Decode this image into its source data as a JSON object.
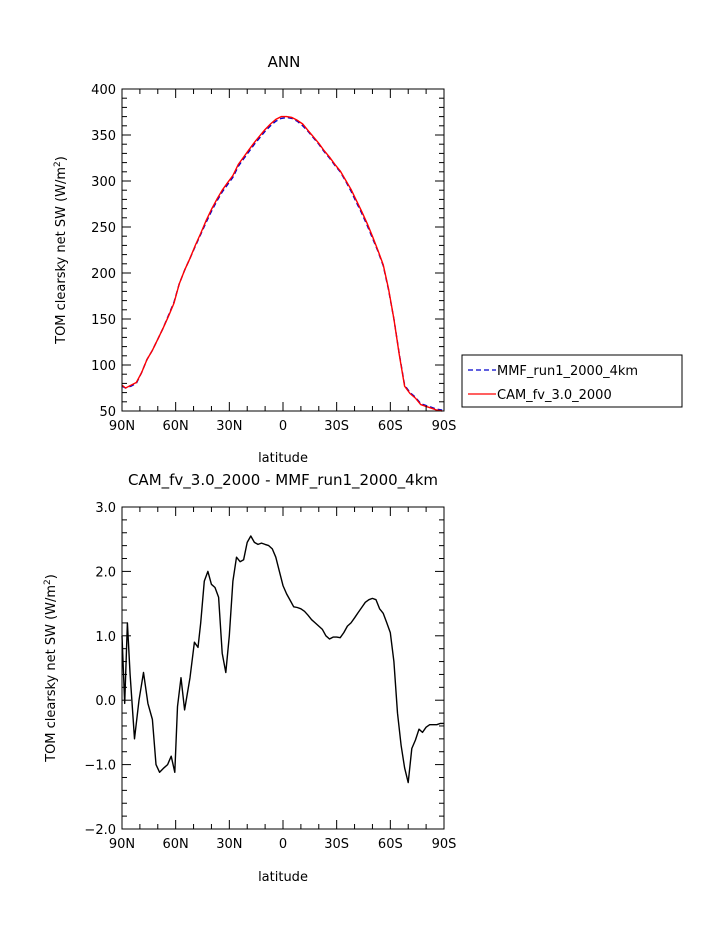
{
  "chart_data": [
    {
      "type": "line",
      "title": "ANN",
      "xlabel": "latitude",
      "ylabel": "TOM clearsky net SW (W/m",
      "ylabel_sup": "2",
      "ylabel_close": ")",
      "xlim": [
        90,
        -90
      ],
      "ylim": [
        50,
        400
      ],
      "x_ticks": [
        {
          "value": 90,
          "label": "90N"
        },
        {
          "value": 60,
          "label": "60N"
        },
        {
          "value": 30,
          "label": "30N"
        },
        {
          "value": 0,
          "label": "0"
        },
        {
          "value": -30,
          "label": "30S"
        },
        {
          "value": -60,
          "label": "60S"
        },
        {
          "value": -90,
          "label": "90S"
        }
      ],
      "y_ticks": [
        {
          "value": 50,
          "label": "50"
        },
        {
          "value": 100,
          "label": "100"
        },
        {
          "value": 150,
          "label": "150"
        },
        {
          "value": 200,
          "label": "200"
        },
        {
          "value": 250,
          "label": "250"
        },
        {
          "value": 300,
          "label": "300"
        },
        {
          "value": 350,
          "label": "350"
        },
        {
          "value": 400,
          "label": "400"
        }
      ],
      "legend_position": "right",
      "series": [
        {
          "name": "MMF_run1_2000_4km",
          "color": "#0000cc",
          "dash": "dashed",
          "x": [
            90,
            88,
            85,
            82,
            79,
            76,
            73,
            70,
            67,
            64,
            61,
            58,
            55,
            52,
            49,
            46,
            43,
            40,
            37,
            34,
            31,
            28,
            25,
            22,
            19,
            16,
            13,
            10,
            7,
            4,
            1,
            -2,
            -5,
            -8,
            -11,
            -14,
            -17,
            -20,
            -23,
            -26,
            -29,
            -32,
            -35,
            -38,
            -41,
            -44,
            -47,
            -50,
            -53,
            -56,
            -59,
            -62,
            -65,
            -68,
            -71,
            -74,
            -77,
            -80,
            -83,
            -86,
            -89
          ],
          "y": [
            77,
            75,
            77,
            80,
            92,
            106,
            116,
            128,
            140,
            154,
            168,
            188,
            203,
            216,
            229,
            242,
            255,
            267,
            278,
            288,
            296,
            304,
            316,
            324,
            332,
            340,
            347,
            354,
            360,
            365,
            368,
            369,
            368,
            365,
            360,
            354,
            347,
            340,
            332,
            325,
            317,
            310,
            300,
            289,
            277,
            265,
            252,
            238,
            224,
            208,
            182,
            150,
            112,
            78,
            70,
            65,
            58,
            56,
            54,
            52,
            51
          ]
        },
        {
          "name": "CAM_fv_3.0_2000",
          "color": "#ff0000",
          "dash": "solid",
          "x": [
            90,
            88,
            85,
            82,
            79,
            76,
            73,
            70,
            67,
            64,
            61,
            58,
            55,
            52,
            49,
            46,
            43,
            40,
            37,
            34,
            31,
            28,
            25,
            22,
            19,
            16,
            13,
            10,
            7,
            4,
            1,
            -2,
            -5,
            -8,
            -11,
            -14,
            -17,
            -20,
            -23,
            -26,
            -29,
            -32,
            -35,
            -38,
            -41,
            -44,
            -47,
            -50,
            -53,
            -56,
            -59,
            -62,
            -65,
            -68,
            -71,
            -74,
            -77,
            -80,
            -83,
            -86,
            -89
          ],
          "y": [
            78,
            75,
            78,
            81,
            92,
            106,
            116,
            128,
            140,
            153,
            167,
            188,
            203,
            216,
            230,
            243,
            257,
            269,
            280,
            290,
            298,
            306,
            318,
            326,
            334,
            342,
            349,
            356,
            362,
            367,
            370,
            370,
            369,
            366,
            362,
            355,
            348,
            341,
            333,
            326,
            318,
            311,
            301,
            291,
            279,
            267,
            254,
            240,
            225,
            209,
            183,
            150,
            111,
            77,
            69,
            64,
            57,
            55,
            53,
            51,
            50
          ]
        }
      ]
    },
    {
      "type": "line",
      "title": "CAM_fv_3.0_2000 - MMF_run1_2000_4km",
      "xlabel": "latitude",
      "ylabel": "TOM clearsky net SW (W/m",
      "ylabel_sup": "2",
      "ylabel_close": ")",
      "xlim": [
        90,
        -90
      ],
      "ylim": [
        -2.0,
        3.0
      ],
      "x_ticks": [
        {
          "value": 90,
          "label": "90N"
        },
        {
          "value": 60,
          "label": "60N"
        },
        {
          "value": 30,
          "label": "30N"
        },
        {
          "value": 0,
          "label": "0"
        },
        {
          "value": -30,
          "label": "30S"
        },
        {
          "value": -60,
          "label": "60S"
        },
        {
          "value": -90,
          "label": "90S"
        }
      ],
      "y_ticks": [
        {
          "value": -2.0,
          "label": "−2.0"
        },
        {
          "value": -1.0,
          "label": "−1.0"
        },
        {
          "value": 0.0,
          "label": "0.0"
        },
        {
          "value": 1.0,
          "label": "1.0"
        },
        {
          "value": 2.0,
          "label": "2.0"
        },
        {
          "value": 3.0,
          "label": "3.0"
        }
      ],
      "series": [
        {
          "color": "#000000",
          "dash": "solid",
          "x": [
            90,
            88.5,
            87,
            85.5,
            83,
            80.5,
            78,
            75.5,
            73,
            71,
            69,
            66.5,
            64.5,
            62.5,
            60.5,
            59,
            57,
            55,
            52,
            49.5,
            47.5,
            46,
            44,
            42,
            40,
            38,
            36,
            34,
            32,
            30,
            28,
            26,
            24,
            22,
            20,
            18,
            16,
            14,
            12,
            10,
            8,
            6,
            4,
            2,
            0,
            -2,
            -4,
            -6,
            -8,
            -10,
            -12,
            -14,
            -16,
            -18,
            -20,
            -22,
            -24,
            -26,
            -28,
            -30,
            -32,
            -34,
            -36,
            -38,
            -40,
            -42,
            -44,
            -46,
            -48,
            -50,
            -52,
            -54,
            -56,
            -58,
            -60,
            -62,
            -64,
            -66,
            -68,
            -70,
            -72,
            -74,
            -76,
            -78,
            -80,
            -82,
            -84,
            -86,
            -88,
            -90
          ],
          "y": [
            1.0,
            -0.05,
            1.2,
            0.4,
            -0.6,
            0.0,
            0.43,
            -0.05,
            -0.3,
            -1.0,
            -1.12,
            -1.05,
            -1.0,
            -0.87,
            -1.12,
            -0.1,
            0.35,
            -0.15,
            0.35,
            0.9,
            0.82,
            1.2,
            1.85,
            2.0,
            1.8,
            1.75,
            1.6,
            0.73,
            0.43,
            1.0,
            1.85,
            2.22,
            2.15,
            2.18,
            2.45,
            2.55,
            2.45,
            2.42,
            2.44,
            2.42,
            2.4,
            2.35,
            2.22,
            2.0,
            1.78,
            1.65,
            1.55,
            1.45,
            1.44,
            1.42,
            1.38,
            1.32,
            1.25,
            1.2,
            1.15,
            1.1,
            1.0,
            0.95,
            0.98,
            0.98,
            0.97,
            1.05,
            1.15,
            1.2,
            1.28,
            1.36,
            1.44,
            1.52,
            1.56,
            1.58,
            1.56,
            1.42,
            1.35,
            1.2,
            1.05,
            0.6,
            -0.2,
            -0.7,
            -1.05,
            -1.28,
            -0.75,
            -0.62,
            -0.45,
            -0.5,
            -0.42,
            -0.38,
            -0.38,
            -0.38,
            -0.36,
            -0.36
          ]
        }
      ]
    }
  ]
}
